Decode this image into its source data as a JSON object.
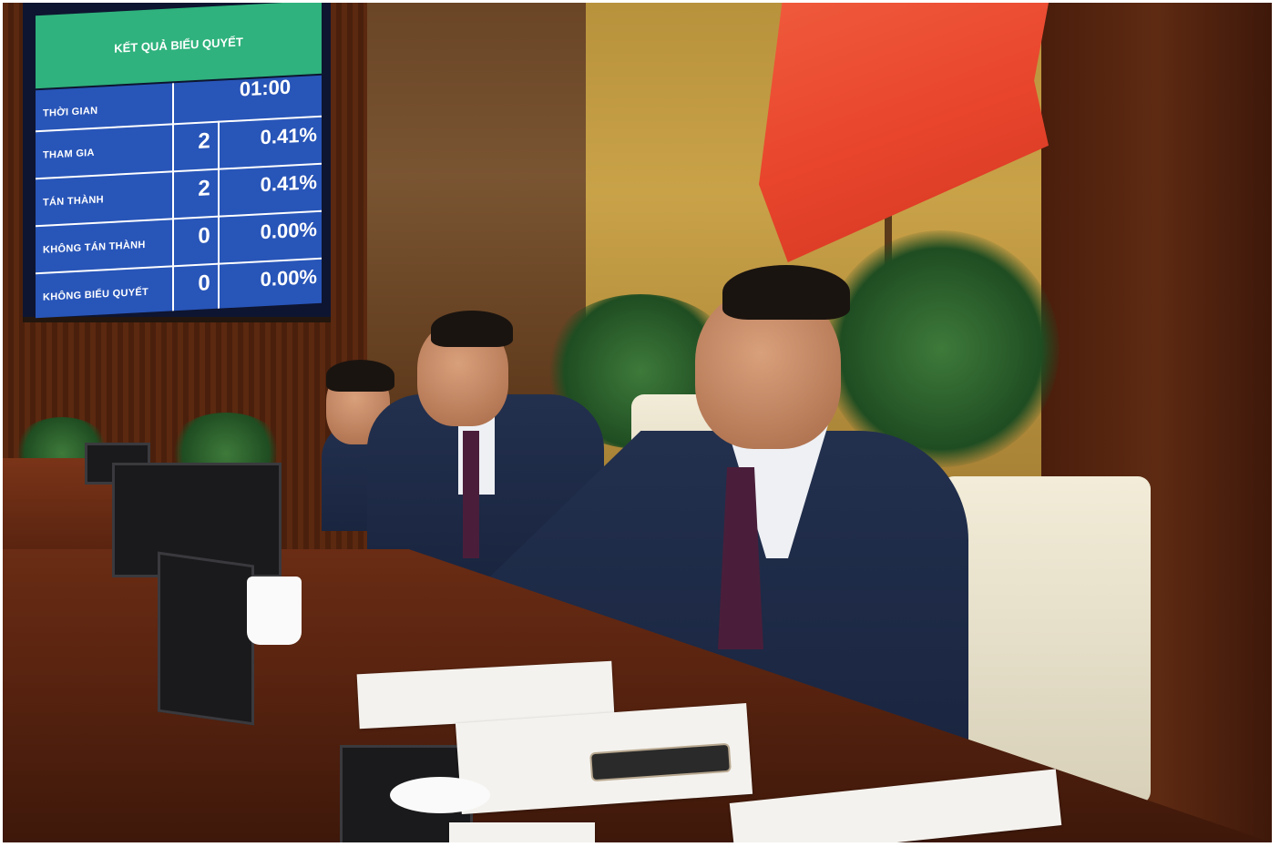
{
  "vote_screen": {
    "title": "KẾT QUẢ BIỂU QUYẾT",
    "rows": [
      {
        "label": "THỜI GIAN",
        "count": "",
        "percent": "01:00"
      },
      {
        "label": "THAM GIA",
        "count": "2",
        "percent": "0.41%"
      },
      {
        "label": "TÁN THÀNH",
        "count": "2",
        "percent": "0.41%"
      },
      {
        "label": "KHÔNG TÁN THÀNH",
        "count": "0",
        "percent": "0.00%"
      },
      {
        "label": "KHÔNG BIỂU QUYẾT",
        "count": "0",
        "percent": "0.00%"
      }
    ],
    "colors": {
      "header": "#2fb27d",
      "body": "#2855b8"
    }
  },
  "scene_colors": {
    "flag": "#e8452c",
    "suit": "#22304e",
    "desk": "#5a2410"
  }
}
